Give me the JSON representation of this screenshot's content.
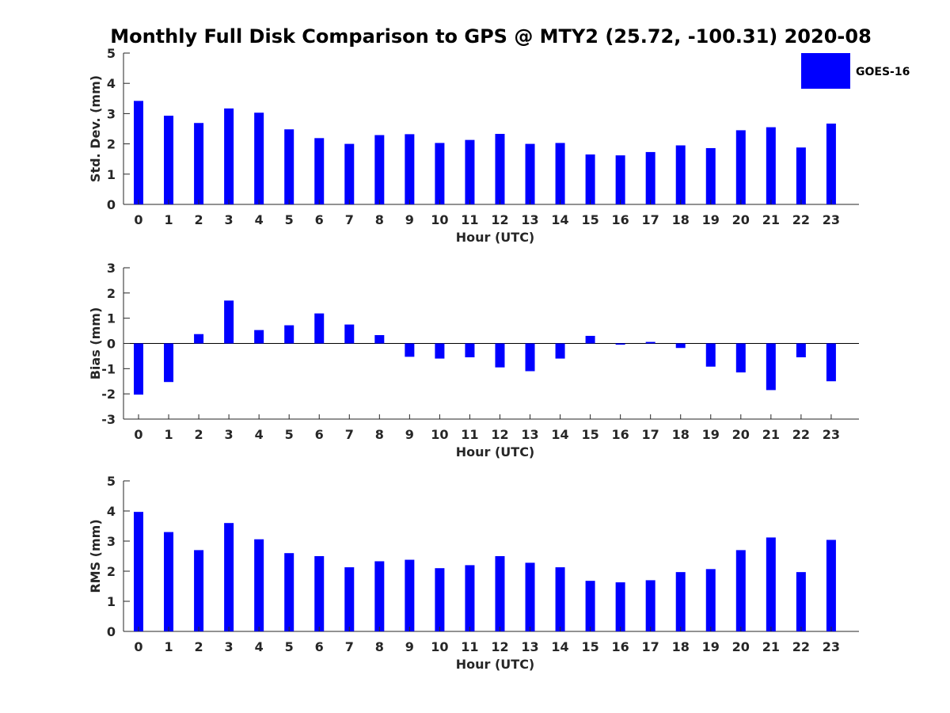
{
  "title": "Monthly Full Disk Comparison to GPS @ MTY2 (25.72, -100.31) 2020-08",
  "legend": {
    "label": "GOES-16",
    "color": "#0000ff"
  },
  "chart_data": [
    {
      "type": "bar",
      "id": "std",
      "ylabel": "Std. Dev. (mm)",
      "xlabel": "Hour (UTC)",
      "ylim": [
        0,
        5
      ],
      "yticks": [
        0,
        1,
        2,
        3,
        4,
        5
      ],
      "categories": [
        "0",
        "1",
        "2",
        "3",
        "4",
        "5",
        "6",
        "7",
        "8",
        "9",
        "10",
        "11",
        "12",
        "13",
        "14",
        "15",
        "16",
        "17",
        "18",
        "19",
        "20",
        "21",
        "22",
        "23"
      ],
      "series": [
        {
          "name": "GOES-16",
          "values": [
            3.42,
            2.93,
            2.69,
            3.17,
            3.03,
            2.48,
            2.19,
            2.0,
            2.29,
            2.32,
            2.03,
            2.13,
            2.33,
            2.0,
            2.03,
            1.65,
            1.62,
            1.73,
            1.95,
            1.86,
            2.45,
            2.55,
            1.88,
            2.67
          ]
        }
      ]
    },
    {
      "type": "bar",
      "id": "bias",
      "ylabel": "Bias (mm)",
      "xlabel": "Hour (UTC)",
      "ylim": [
        -3,
        3
      ],
      "yticks": [
        -3,
        -2,
        -1,
        0,
        1,
        2,
        3
      ],
      "categories": [
        "0",
        "1",
        "2",
        "3",
        "4",
        "5",
        "6",
        "7",
        "8",
        "9",
        "10",
        "11",
        "12",
        "13",
        "14",
        "15",
        "16",
        "17",
        "18",
        "19",
        "20",
        "21",
        "22",
        "23"
      ],
      "series": [
        {
          "name": "GOES-16",
          "values": [
            -2.03,
            -1.53,
            0.37,
            1.7,
            0.53,
            0.72,
            1.19,
            0.75,
            0.33,
            -0.53,
            -0.6,
            -0.55,
            -0.95,
            -1.1,
            -0.6,
            0.3,
            -0.05,
            0.06,
            -0.18,
            -0.92,
            -1.15,
            -1.85,
            -0.55,
            -1.5
          ]
        }
      ]
    },
    {
      "type": "bar",
      "id": "rms",
      "ylabel": "RMS (mm)",
      "xlabel": "Hour (UTC)",
      "ylim": [
        0,
        5
      ],
      "yticks": [
        0,
        1,
        2,
        3,
        4,
        5
      ],
      "categories": [
        "0",
        "1",
        "2",
        "3",
        "4",
        "5",
        "6",
        "7",
        "8",
        "9",
        "10",
        "11",
        "12",
        "13",
        "14",
        "15",
        "16",
        "17",
        "18",
        "19",
        "20",
        "21",
        "22",
        "23"
      ],
      "series": [
        {
          "name": "GOES-16",
          "values": [
            3.97,
            3.3,
            2.7,
            3.6,
            3.06,
            2.6,
            2.5,
            2.13,
            2.33,
            2.38,
            2.1,
            2.2,
            2.5,
            2.28,
            2.13,
            1.68,
            1.63,
            1.7,
            1.97,
            2.07,
            2.7,
            3.12,
            1.97,
            3.04
          ]
        }
      ]
    }
  ]
}
